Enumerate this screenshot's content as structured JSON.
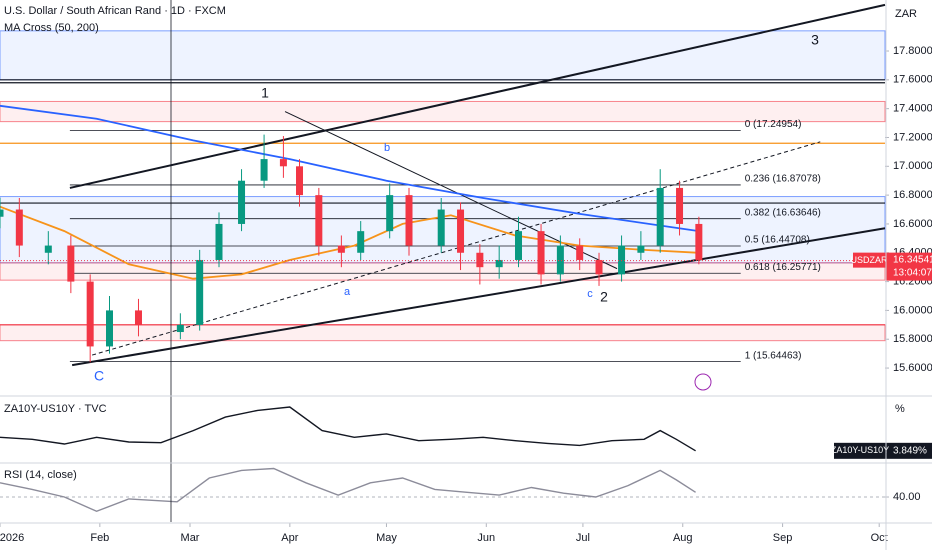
{
  "chart_data": [
    {
      "type": "candlestick",
      "title": "U.S. Dollar / South African Rand · 1D · FXCM",
      "subtitle": "MA Cross (50, 200)",
      "y_unit": "ZAR",
      "x": [
        0,
        6,
        15,
        22,
        28,
        34,
        43,
        56,
        62,
        68,
        75,
        82,
        88,
        93,
        99,
        106,
        112,
        121,
        127,
        137,
        143,
        149,
        155,
        161,
        168,
        174,
        180,
        186,
        193,
        199,
        205,
        211,
        217
      ],
      "open": [
        16.65,
        16.7,
        16.4,
        16.45,
        16.2,
        15.75,
        16.0,
        15.85,
        15.9,
        16.35,
        16.6,
        16.9,
        17.05,
        17.0,
        16.8,
        16.45,
        16.4,
        16.55,
        16.8,
        16.45,
        16.7,
        16.4,
        16.3,
        16.35,
        16.55,
        16.25,
        16.45,
        16.35,
        16.25,
        16.4,
        16.45,
        16.85,
        16.6
      ],
      "high": [
        16.78,
        16.78,
        16.55,
        16.52,
        16.25,
        16.1,
        16.08,
        15.98,
        16.42,
        16.68,
        16.98,
        17.22,
        17.21,
        17.05,
        16.85,
        16.52,
        16.62,
        16.88,
        16.85,
        16.78,
        16.75,
        16.46,
        16.45,
        16.65,
        16.6,
        16.52,
        16.5,
        16.4,
        16.52,
        16.55,
        16.98,
        16.9,
        16.65
      ],
      "low": [
        16.57,
        16.37,
        16.32,
        16.12,
        15.64,
        15.7,
        15.82,
        15.8,
        15.86,
        16.3,
        16.55,
        16.85,
        16.92,
        16.72,
        16.38,
        16.3,
        16.35,
        16.5,
        16.38,
        16.4,
        16.28,
        16.18,
        16.22,
        16.3,
        16.18,
        16.2,
        16.28,
        16.17,
        16.2,
        16.35,
        16.4,
        16.52,
        16.32
      ],
      "close": [
        16.7,
        16.45,
        16.45,
        16.2,
        15.75,
        16.0,
        15.9,
        15.9,
        16.35,
        16.6,
        16.9,
        17.05,
        17.0,
        16.8,
        16.45,
        16.4,
        16.55,
        16.8,
        16.45,
        16.7,
        16.4,
        16.3,
        16.35,
        16.55,
        16.25,
        16.45,
        16.35,
        16.25,
        16.45,
        16.45,
        16.85,
        16.6,
        16.35
      ],
      "up_color": "#089981",
      "down_color": "#f23645",
      "ma_lines": [
        {
          "color": "#2962ff",
          "x": [
            0,
            30,
            60,
            90,
            120,
            150,
            180,
            217
          ],
          "values": [
            17.42,
            17.33,
            17.18,
            17.05,
            16.9,
            16.78,
            16.67,
            16.55
          ]
        },
        {
          "color": "#f7931a",
          "x": [
            0,
            20,
            40,
            60,
            75,
            90,
            110,
            125,
            140,
            160,
            180,
            200,
            217
          ],
          "values": [
            16.72,
            16.55,
            16.32,
            16.22,
            16.25,
            16.35,
            16.45,
            16.6,
            16.66,
            16.52,
            16.45,
            16.42,
            16.4
          ]
        }
      ],
      "xlim": [
        0,
        274.8
      ],
      "ylim": [
        15.413,
        18.154
      ],
      "xticks": [
        {
          "value": 0,
          "label": "2026"
        },
        {
          "value": 31,
          "label": "Feb"
        },
        {
          "value": 59,
          "label": "Mar"
        },
        {
          "value": 90,
          "label": "Apr"
        },
        {
          "value": 120,
          "label": "May"
        },
        {
          "value": 151,
          "label": "Jun"
        },
        {
          "value": 181,
          "label": "Jul"
        },
        {
          "value": 212,
          "label": "Aug"
        },
        {
          "value": 243,
          "label": "Sep"
        },
        {
          "value": 273,
          "label": "Oct"
        }
      ],
      "yticks": [
        {
          "value": 17.8,
          "label": "17.80000"
        },
        {
          "value": 17.6,
          "label": "17.60000"
        },
        {
          "value": 17.4,
          "label": "17.40000"
        },
        {
          "value": 17.2,
          "label": "17.20000"
        },
        {
          "value": 17.0,
          "label": "17.00000"
        },
        {
          "value": 16.8,
          "label": "16.80000"
        },
        {
          "value": 16.6,
          "label": "16.60000"
        },
        {
          "value": 16.4,
          "label": "16.40000"
        },
        {
          "value": 16.2,
          "label": "16.20000"
        },
        {
          "value": 16.0,
          "label": "16.00000"
        },
        {
          "value": 15.8,
          "label": "15.80000"
        },
        {
          "value": 15.6,
          "label": "15.60000"
        }
      ],
      "zones": [
        {
          "from": 17.94,
          "to": 17.6,
          "color": "#2962ff"
        },
        {
          "from": 17.45,
          "to": 17.31,
          "color": "#f23645"
        },
        {
          "from": 16.79,
          "to": 16.33,
          "color": "#2962ff"
        },
        {
          "from": 16.33,
          "to": 16.21,
          "color": "#f23645"
        },
        {
          "from": 15.9,
          "to": 15.79,
          "color": "#f23645"
        }
      ],
      "levels": [
        {
          "price": 17.6,
          "color": "#131722"
        },
        {
          "price": 17.58,
          "color": "#131722"
        },
        {
          "price": 17.16,
          "color": "#f7931a"
        },
        {
          "price": 16.745,
          "color": "#131722"
        },
        {
          "price": 15.9,
          "color": "#f23645"
        }
      ],
      "trendlines": [
        {
          "x": [
            21.7,
            274.8
          ],
          "y": [
            16.85,
            18.12
          ],
          "style": "solid",
          "width": 2
        },
        {
          "x": [
            22.4,
            274.8
          ],
          "y": [
            15.62,
            16.57
          ],
          "style": "solid",
          "width": 2
        },
        {
          "x": [
            28.6,
            254.7
          ],
          "y": [
            15.69,
            17.17
          ],
          "style": "dashed",
          "width": 1
        },
        {
          "x": [
            88.5,
            191.6
          ],
          "y": [
            17.38,
            16.29
          ],
          "style": "solid",
          "width": 1
        }
      ],
      "fib_x": [
        21.7,
        230
      ],
      "fib_prices": [
        17.24954,
        16.87078,
        16.63646,
        16.44708,
        16.25771,
        15.64463
      ],
      "fib_labels": [
        "0 (17.24954)",
        "0.236 (16.87078)",
        "0.382 (16.63646)",
        "0.5 (16.44708)",
        "0.618 (16.25771)",
        "1 (15.64463)"
      ],
      "wave_labels": [
        "1",
        "2",
        "3",
        "a",
        "b",
        "c",
        "C"
      ],
      "price_tag": {
        "symbol": "USDZAR",
        "price": 16.34541,
        "countdown": "13:04:07"
      }
    },
    {
      "type": "line",
      "title": "ZA10Y-US10Y · TVC",
      "y_unit": "%",
      "tag": "ZA10Y-US10Y",
      "color": "#131722",
      "x": [
        0,
        10,
        20,
        30,
        40,
        50,
        60,
        70,
        80,
        90,
        100,
        110,
        120,
        130,
        140,
        150,
        160,
        170,
        180,
        190,
        200,
        205,
        210,
        216
      ],
      "values": [
        4.05,
        4.02,
        3.95,
        4.05,
        3.98,
        3.97,
        4.15,
        4.35,
        4.45,
        4.5,
        4.15,
        4.05,
        4.1,
        4.0,
        4.02,
        4.05,
        4.0,
        3.96,
        3.93,
        4.0,
        4.02,
        4.15,
        4.02,
        3.849
      ],
      "last_value_label": "3.849%",
      "xlim": [
        0,
        274.8
      ],
      "ylim": [
        3.683,
        4.634
      ]
    },
    {
      "type": "line",
      "title": "RSI (14, close)",
      "color": "#8c8c9a",
      "x": [
        0,
        10,
        20,
        30,
        40,
        55,
        65,
        75,
        85,
        95,
        105,
        115,
        125,
        135,
        145,
        155,
        165,
        175,
        185,
        195,
        205,
        210,
        216
      ],
      "values": [
        55,
        48,
        40,
        25,
        38,
        35,
        60,
        68,
        70,
        55,
        42,
        55,
        60,
        48,
        45,
        42,
        50,
        44,
        40,
        52,
        68,
        58,
        45
      ],
      "xlim": [
        0,
        274.8
      ],
      "ylim": [
        13.7,
        73.7
      ],
      "yticks": [
        {
          "value": 40,
          "label": "40.00"
        }
      ]
    }
  ]
}
